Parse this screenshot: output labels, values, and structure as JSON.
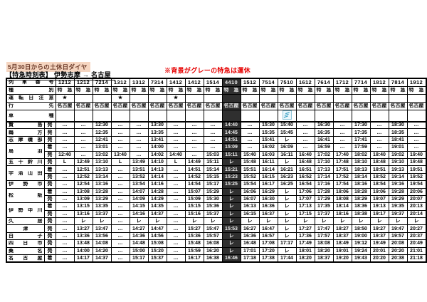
{
  "page": {
    "date_note": "5月30日からの土休日ダイヤ",
    "title_prefix": "【特急時刻表】",
    "title_route": "伊勢志摩 → 名古屋",
    "suspend_note": "※背景がグレーの特急は運休",
    "colors": {
      "highlight": "#f5d5c0",
      "alert_red": "#e60000",
      "suspended_bg": "#2f2f2f",
      "suspended_text": "#ececec",
      "shimakaze_blue": "#2b9bc0"
    }
  },
  "table": {
    "row_headers": {
      "train_no": "列車番号",
      "type": "種別",
      "op_note": "運転日注意",
      "dest": "行先",
      "car_type": "車種"
    },
    "legend": {
      "pass_symbol": "レ",
      "through_symbol": "L",
      "no_service": "…",
      "note_star": "★"
    },
    "stations": [
      {
        "name": "賢島",
        "rowspan": 1,
        "suffix": "発"
      },
      {
        "name": "鵜方",
        "rowspan": 1,
        "suffix": "発"
      },
      {
        "name": "志摩磯部",
        "rowspan": 1,
        "suffix": "発"
      },
      {
        "name": "鳥羽",
        "rowspan": 2,
        "suffix": "着"
      },
      {
        "name": "",
        "rowspan": 1,
        "suffix": "発"
      },
      {
        "name": "五十鈴川",
        "rowspan": 1,
        "suffix": "発"
      },
      {
        "name": "宇治山田",
        "rowspan": 2,
        "suffix": "着"
      },
      {
        "name": "",
        "rowspan": 1,
        "suffix": "発"
      },
      {
        "name": "伊勢市",
        "rowspan": 1,
        "suffix": "発"
      },
      {
        "name": "松阪",
        "rowspan": 2,
        "suffix": "着"
      },
      {
        "name": "",
        "rowspan": 1,
        "suffix": "発"
      },
      {
        "name": "伊勢中川",
        "rowspan": 2,
        "suffix": "着"
      },
      {
        "name": "",
        "rowspan": 1,
        "suffix": "発"
      },
      {
        "name": "久居",
        "rowspan": 1,
        "suffix": "発"
      },
      {
        "name": "津",
        "rowspan": 1,
        "suffix": "発"
      },
      {
        "name": "白子",
        "rowspan": 1,
        "suffix": "発"
      },
      {
        "name": "四日市",
        "rowspan": 1,
        "suffix": "発"
      },
      {
        "name": "桑名",
        "rowspan": 1,
        "suffix": "発"
      },
      {
        "name": "名古屋",
        "rowspan": 1,
        "suffix": "着"
      }
    ],
    "trains": [
      {
        "no": "1212",
        "type": "特急",
        "note": "★",
        "dest": "名古屋",
        "suspended": false,
        "icon": "",
        "times": [
          "…",
          "…",
          "…",
          "…",
          "12:40",
          "L",
          "…",
          "…",
          "…",
          "…",
          "…",
          "…",
          "…",
          "…",
          "…",
          "…",
          "…",
          "…",
          "…"
        ]
      },
      {
        "no": "1212",
        "type": "特急",
        "note": "",
        "dest": "名古屋",
        "suspended": false,
        "icon": "",
        "times": [
          "…",
          "…",
          "…",
          "…",
          "…",
          "12:49",
          "12:51",
          "12:52",
          "12:54",
          "13:08",
          "13:09",
          "13:15",
          "13:16",
          "レ",
          "13:27",
          "13:36",
          "13:48",
          "14:00",
          "14:17"
        ]
      },
      {
        "no": "7214",
        "type": "特急",
        "note": "",
        "dest": "名古屋",
        "suspended": false,
        "icon": "",
        "times": [
          "12:30",
          "12:35",
          "12:41",
          "13:01",
          "13:02",
          "13:10",
          "13:13",
          "13:14",
          "13:16",
          "13:28",
          "13:29",
          "13:35",
          "13:37",
          "レ",
          "13:47",
          "13:56",
          "14:08",
          "14:20",
          "14:37"
        ]
      },
      {
        "no": "1312",
        "type": "特急",
        "note": "★",
        "dest": "名古屋",
        "suspended": false,
        "icon": "",
        "times": [
          "…",
          "…",
          "…",
          "…",
          "13:40",
          "L",
          "…",
          "…",
          "…",
          "…",
          "…",
          "…",
          "…",
          "…",
          "…",
          "…",
          "…",
          "…",
          "…"
        ]
      },
      {
        "no": "1312",
        "type": "特急",
        "note": "",
        "dest": "名古屋",
        "suspended": false,
        "icon": "",
        "times": [
          "…",
          "…",
          "…",
          "…",
          "…",
          "13:49",
          "13:51",
          "13:52",
          "13:54",
          "14:07",
          "14:09",
          "14:15",
          "14:16",
          "レ",
          "14:27",
          "14:36",
          "14:48",
          "15:00",
          "15:17"
        ]
      },
      {
        "no": "7314",
        "type": "特急",
        "note": "",
        "dest": "名古屋",
        "suspended": false,
        "icon": "",
        "times": [
          "13:30",
          "13:35",
          "13:41",
          "14:00",
          "14:02",
          "14:10",
          "14:13",
          "14:14",
          "14:16",
          "14:28",
          "14:29",
          "14:35",
          "14:37",
          "レ",
          "14:47",
          "14:56",
          "15:08",
          "15:20",
          "15:37"
        ]
      },
      {
        "no": "1412",
        "type": "特急",
        "note": "★",
        "dest": "名古屋",
        "suspended": false,
        "icon": "",
        "times": [
          "…",
          "…",
          "…",
          "…",
          "14:40",
          "L",
          "…",
          "…",
          "…",
          "…",
          "…",
          "…",
          "…",
          "…",
          "…",
          "…",
          "…",
          "…",
          "…"
        ]
      },
      {
        "no": "1412",
        "type": "特急",
        "note": "",
        "dest": "名古屋",
        "suspended": false,
        "icon": "",
        "times": [
          "…",
          "…",
          "…",
          "…",
          "…",
          "14:49",
          "14:51",
          "14:52",
          "14:54",
          "15:07",
          "15:09",
          "15:15",
          "15:16",
          "レ",
          "15:27",
          "15:36",
          "15:48",
          "15:59",
          "16:17"
        ]
      },
      {
        "no": "1514",
        "type": "特急",
        "note": "",
        "dest": "名古屋",
        "suspended": false,
        "icon": "",
        "times": [
          "…",
          "…",
          "…",
          "…",
          "15:03",
          "15:11",
          "15:14",
          "15:15",
          "15:17",
          "15:29",
          "15:30",
          "15:36",
          "15:37",
          "レ",
          "15:47",
          "15:57",
          "16:08",
          "16:20",
          "16:38"
        ]
      },
      {
        "no": "4410",
        "type": "特急",
        "note": "",
        "dest": "名古屋",
        "suspended": true,
        "icon": "",
        "times": [
          "14:40",
          "14:45",
          "14:51",
          "15:09",
          "15:11",
          "レ",
          "15:21",
          "15:23",
          "15:25",
          "レ",
          "レ",
          "レ",
          "レ",
          "レ",
          "15:53",
          "レ",
          "レ",
          "レ",
          "16:46"
        ]
      },
      {
        "no": "1512",
        "type": "特急",
        "note": "",
        "dest": "名古屋",
        "suspended": false,
        "icon": "",
        "times": [
          "…",
          "…",
          "…",
          "…",
          "15:40",
          "15:48",
          "15:51",
          "15:52",
          "15:54",
          "16:06",
          "16:07",
          "16:13",
          "16:15",
          "レ",
          "16:27",
          "16:36",
          "16:48",
          "17:01",
          "17:18"
        ]
      },
      {
        "no": "7514",
        "type": "特急",
        "note": "",
        "dest": "名古屋",
        "suspended": false,
        "icon": "",
        "times": [
          "15:30",
          "15:35",
          "15:41",
          "16:02",
          "16:03",
          "16:11",
          "16:14",
          "16:15",
          "16:17",
          "16:29",
          "16:30",
          "16:36",
          "16:37",
          "レ",
          "16:47",
          "16:57",
          "17:08",
          "17:20",
          "17:38"
        ]
      },
      {
        "no": "7510",
        "type": "特急",
        "note": "",
        "dest": "名古屋",
        "suspended": false,
        "icon": "shimakaze-icon",
        "times": [
          "15:40",
          "15:45",
          "レ",
          "16:09",
          "16:11",
          "レ",
          "16:21",
          "16:23",
          "16:25",
          "レ",
          "レ",
          "レ",
          "レ",
          "レ",
          "レ",
          "レ",
          "17:17",
          "レ",
          "17:44"
        ]
      },
      {
        "no": "1612",
        "type": "特急",
        "note": "",
        "dest": "名古屋",
        "suspended": false,
        "icon": "",
        "times": [
          "…",
          "…",
          "…",
          "…",
          "16:40",
          "16:48",
          "16:51",
          "16:52",
          "16:54",
          "17:06",
          "17:07",
          "17:13",
          "17:15",
          "レ",
          "17:27",
          "17:36",
          "17:49",
          "18:01",
          "18:20"
        ]
      },
      {
        "no": "7614",
        "type": "特急",
        "note": "",
        "dest": "名古屋",
        "suspended": false,
        "icon": "",
        "times": [
          "16:30",
          "16:35",
          "16:41",
          "16:59",
          "17:02",
          "17:10",
          "17:13",
          "17:14",
          "17:16",
          "17:28",
          "17:29",
          "17:35",
          "17:37",
          "レ",
          "17:47",
          "17:57",
          "18:08",
          "18:20",
          "18:37"
        ]
      },
      {
        "no": "1712",
        "type": "特急",
        "note": "",
        "dest": "名古屋",
        "suspended": false,
        "icon": "",
        "times": [
          "…",
          "…",
          "…",
          "…",
          "17:40",
          "17:48",
          "17:51",
          "17:52",
          "17:54",
          "18:06",
          "18:08",
          "18:14",
          "18:16",
          "レ",
          "18:27",
          "18:37",
          "18:49",
          "19:01",
          "19:20"
        ]
      },
      {
        "no": "7714",
        "type": "特急",
        "note": "",
        "dest": "名古屋",
        "suspended": false,
        "icon": "",
        "times": [
          "17:30",
          "17:35",
          "17:41",
          "17:59",
          "18:02",
          "18:10",
          "18:13",
          "18:14",
          "18:16",
          "18:28",
          "18:29",
          "18:36",
          "18:38",
          "レ",
          "18:50",
          "19:00",
          "19:12",
          "19:24",
          "19:43"
        ]
      },
      {
        "no": "1812",
        "type": "特急",
        "note": "",
        "dest": "名古屋",
        "suspended": false,
        "icon": "",
        "times": [
          "…",
          "…",
          "…",
          "…",
          "18:40",
          "18:48",
          "18:51",
          "18:52",
          "18:54",
          "19:06",
          "19:07",
          "19:13",
          "19:17",
          "レ",
          "19:27",
          "19:37",
          "19:49",
          "20:01",
          "20:20"
        ]
      },
      {
        "no": "7814",
        "type": "特急",
        "note": "",
        "dest": "名古屋",
        "suspended": false,
        "icon": "",
        "times": [
          "18:30",
          "18:35",
          "18:41",
          "19:01",
          "19:02",
          "19:10",
          "19:13",
          "19:14",
          "19:16",
          "19:28",
          "19:29",
          "19:35",
          "19:37",
          "レ",
          "19:47",
          "19:57",
          "20:08",
          "20:20",
          "20:38"
        ]
      },
      {
        "no": "1912",
        "type": "特急",
        "note": "",
        "dest": "名古屋",
        "suspended": false,
        "icon": "",
        "times": [
          "…",
          "…",
          "…",
          "…",
          "19:40",
          "19:48",
          "19:51",
          "19:52",
          "19:54",
          "20:06",
          "20:07",
          "20:13",
          "20:14",
          "レ",
          "20:27",
          "20:37",
          "20:49",
          "21:01",
          "21:18"
        ]
      }
    ]
  }
}
